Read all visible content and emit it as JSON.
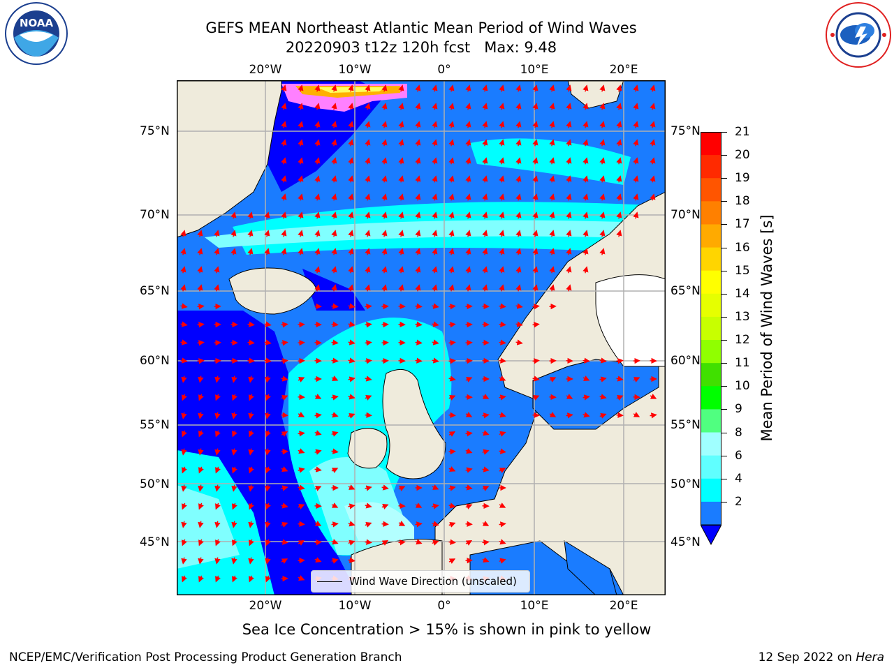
{
  "title": {
    "line1": "GEFS MEAN Northeast Atlantic Mean Period of Wind Waves",
    "line2": "20220903 t12z 120h fcst   Max: 9.48"
  },
  "logos": {
    "left": {
      "icon": "noaa-logo",
      "text": "NOAA",
      "ring_text": "NATIONAL OCEANIC AND ATMOSPHERIC ADMINISTRATION · U.S. DEPARTMENT OF COMMERCE"
    },
    "right": {
      "icon": "nws-logo",
      "ring_text": "NATIONAL WEATHER SERVICE"
    }
  },
  "map": {
    "lon_ticks_top": [
      "20°W",
      "10°W",
      "0°",
      "10°E",
      "20°E"
    ],
    "lon_ticks_bottom": [
      "20°W",
      "10°W",
      "0°",
      "10°E",
      "20°E"
    ],
    "lat_ticks_left": [
      "75°N",
      "70°N",
      "65°N",
      "60°N",
      "55°N",
      "50°N",
      "45°N"
    ],
    "lat_ticks_right": [
      "75°N",
      "70°N",
      "65°N",
      "60°N",
      "55°N",
      "50°N",
      "45°N"
    ],
    "legend_label": "Wind Wave Direction (unscaled)",
    "colors": {
      "land": "#efebdc",
      "deep_blue": "#0000ff",
      "mid_blue": "#1a7cff",
      "cyan": "#00ffff",
      "light_cyan": "#80ffff",
      "pale_cyan": "#b3ffff",
      "arrow": "#ff0000",
      "grid": "#b0b0b0"
    }
  },
  "colorbar": {
    "title": "Mean Period of Wind Waves [s]",
    "ticks": [
      "21",
      "20",
      "19",
      "18",
      "17",
      "16",
      "15",
      "14",
      "13",
      "12",
      "11",
      "10",
      "9",
      "8",
      "6",
      "4",
      "2"
    ],
    "colors": [
      "#ff0000",
      "#ff2a00",
      "#ff5500",
      "#ff8000",
      "#ffaa00",
      "#ffd500",
      "#ffff00",
      "#e6ff00",
      "#c8ff00",
      "#90ff00",
      "#40e000",
      "#00ff00",
      "#50ff80",
      "#a0ffff",
      "#60ffff",
      "#00ffff",
      "#1a7cff"
    ],
    "extend_color": "#0000ff"
  },
  "note": "Sea Ice Concentration > 15% is shown in pink to yellow",
  "footer": {
    "left": "NCEP/EMC/Verification Post Processing Product Generation Branch",
    "right_date": "12 Sep 2022 on",
    "right_host": "Hera"
  }
}
